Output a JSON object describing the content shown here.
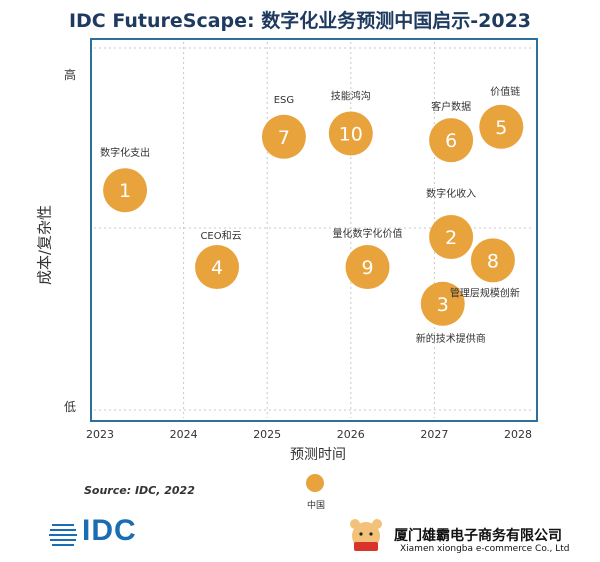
{
  "title": "IDC FutureScape: 数字化业务预测中国启示-2023",
  "source": "Source: IDC, 2022",
  "logo_text": "IDC",
  "company_cn": "厦门雄霸电子商务有限公司",
  "company_en": "Xiamen xiongba e-commerce Co., Ltd",
  "colors": {
    "bubble": "#e8a33d",
    "frame": "#2e6f9e",
    "grid": "#c8c8c8",
    "title": "#1f3a5f",
    "logo": "#1b6db3"
  },
  "chart_data": {
    "type": "scatter",
    "title": "IDC FutureScape: 数字化业务预测中国启示-2023",
    "xlabel": "预测时间",
    "ylabel": "成本/复杂性",
    "x_ticks": [
      "2023",
      "2024",
      "2025",
      "2026",
      "2027",
      "2028"
    ],
    "xlim": [
      2023,
      2028
    ],
    "y_tick_labels": {
      "high": "高",
      "low": "低"
    },
    "ylim": [
      0,
      10
    ],
    "grid": true,
    "legend": [
      {
        "label": "中国",
        "color": "#e8a33d"
      }
    ],
    "legend_position": "bottom",
    "points": [
      {
        "id": "1",
        "label": "数字化支出",
        "x": 2023.3,
        "y": 6.4
      },
      {
        "id": "2",
        "label": "数字化收入",
        "x": 2027.2,
        "y": 5.0
      },
      {
        "id": "3",
        "label": "新的技术提供商",
        "x": 2027.1,
        "y": 3.0
      },
      {
        "id": "4",
        "label": "CEO和云",
        "x": 2024.4,
        "y": 4.1
      },
      {
        "id": "5",
        "label": "价值链",
        "x": 2027.8,
        "y": 8.3
      },
      {
        "id": "6",
        "label": "客户数据",
        "x": 2027.2,
        "y": 7.9
      },
      {
        "id": "7",
        "label": "ESG",
        "x": 2025.2,
        "y": 8.0
      },
      {
        "id": "8",
        "label": "管理层规模创新",
        "x": 2027.7,
        "y": 4.3
      },
      {
        "id": "9",
        "label": "量化数字化价值",
        "x": 2026.2,
        "y": 4.1
      },
      {
        "id": "10",
        "label": "技能鸿沟",
        "x": 2026.0,
        "y": 8.1
      }
    ]
  }
}
